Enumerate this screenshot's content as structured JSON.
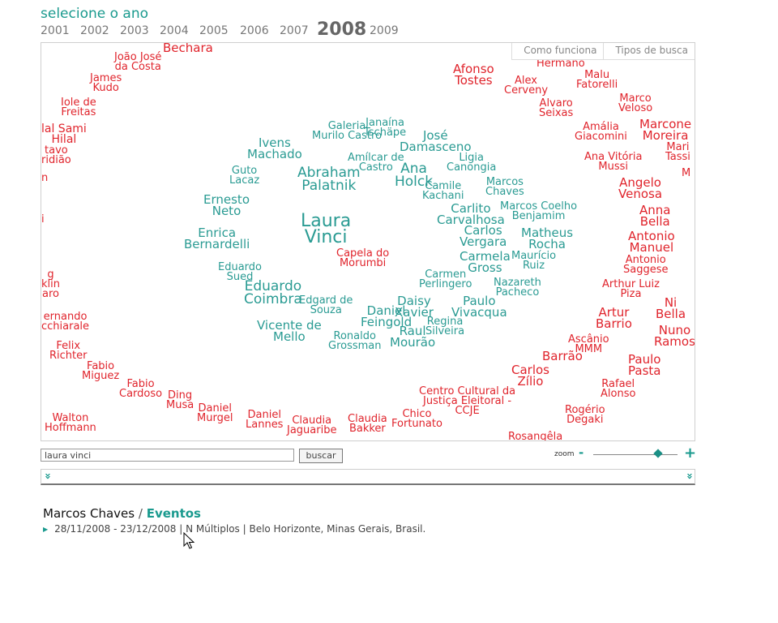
{
  "header": {
    "title": "selecione o ano",
    "years": [
      "2001",
      "2002",
      "2003",
      "2004",
      "2005",
      "2006",
      "2007",
      "2008",
      "2009"
    ],
    "selected_year": "2008"
  },
  "cloud": {
    "tabs": [
      "Como funciona",
      "Tipos de busca"
    ],
    "terms": [
      {
        "text": "Bechara",
        "color": "red"
      },
      {
        "text": "João José\nda Costa",
        "color": "red"
      },
      {
        "text": "James\nKudo",
        "color": "red"
      },
      {
        "text": "Iole de\nFreitas",
        "color": "red"
      },
      {
        "text": "lal Sami\nHilal",
        "color": "red"
      },
      {
        "text": "tavo\nridião",
        "color": "red"
      },
      {
        "text": "n",
        "color": "red"
      },
      {
        "text": "i",
        "color": "red"
      },
      {
        "text": "g\nklin\naro",
        "color": "red"
      },
      {
        "text": "ernando\ncchiarale",
        "color": "red"
      },
      {
        "text": "Felix\nRichter",
        "color": "red"
      },
      {
        "text": "Fabio\nMiguez",
        "color": "red"
      },
      {
        "text": "Fabio\nCardoso",
        "color": "red"
      },
      {
        "text": "Ding\nMusa",
        "color": "red"
      },
      {
        "text": "Walton\nHoffmann",
        "color": "red"
      },
      {
        "text": "Daniel\nMurgel",
        "color": "red"
      },
      {
        "text": "Daniel\nLannes",
        "color": "red"
      },
      {
        "text": "Claudia\nJaguaribe",
        "color": "red"
      },
      {
        "text": "Claudia\nBakker",
        "color": "red"
      },
      {
        "text": "Chico\nFortunato",
        "color": "red"
      },
      {
        "text": "Centro Cultural da\nJustiça Eleitoral -\nCCJE",
        "color": "red"
      },
      {
        "text": "Capela do\nMorumbi",
        "color": "red"
      },
      {
        "text": "Afonso\nTostes",
        "color": "red"
      },
      {
        "text": "Alex\nCerveny",
        "color": "red"
      },
      {
        "text": "Hermano",
        "color": "red"
      },
      {
        "text": "Malu\nFatorelli",
        "color": "red"
      },
      {
        "text": "Alvaro\nSeixas",
        "color": "red"
      },
      {
        "text": "Marco\nVeloso",
        "color": "red"
      },
      {
        "text": "Marcone\nMoreira",
        "color": "red"
      },
      {
        "text": "Amália\nGiacomini",
        "color": "red"
      },
      {
        "text": "Mari\nTassi",
        "color": "red"
      },
      {
        "text": "Ana Vitória\nMussi",
        "color": "red"
      },
      {
        "text": "M",
        "color": "red"
      },
      {
        "text": "Angelo\nVenosa",
        "color": "red"
      },
      {
        "text": "Anna\nBella",
        "color": "red"
      },
      {
        "text": "Antonio\nManuel",
        "color": "red"
      },
      {
        "text": "Antonio\nSaggese",
        "color": "red"
      },
      {
        "text": "Arthur Luiz\nPiza",
        "color": "red"
      },
      {
        "text": "Artur\nBarrio",
        "color": "red"
      },
      {
        "text": "Nuno\nRamos",
        "color": "red"
      },
      {
        "text": "Ni\nBella",
        "color": "red"
      },
      {
        "text": "Ascânio\nMMM",
        "color": "red"
      },
      {
        "text": "Barrão",
        "color": "red"
      },
      {
        "text": "Paulo\nPasta",
        "color": "red"
      },
      {
        "text": "Carlos\nZílio",
        "color": "red"
      },
      {
        "text": "Rafael\nAlonso",
        "color": "red"
      },
      {
        "text": "Rogério\nDegaki",
        "color": "red"
      },
      {
        "text": "Rosangêla",
        "color": "red"
      },
      {
        "text": "Galeria\nMurilo Castro",
        "color": "teal"
      },
      {
        "text": "Janaína\nTschäpe",
        "color": "teal"
      },
      {
        "text": "Ivens\nMachado",
        "color": "teal"
      },
      {
        "text": "José\nDamasceno",
        "color": "teal"
      },
      {
        "text": "Amílcar de\nCastro",
        "color": "teal"
      },
      {
        "text": "Ligia\nCanongia",
        "color": "teal"
      },
      {
        "text": "Guto\nLacaz",
        "color": "teal"
      },
      {
        "text": "Abraham\nPalatnik",
        "color": "teal"
      },
      {
        "text": "Ana\nHolck",
        "color": "teal"
      },
      {
        "text": "Marcos\nChaves",
        "color": "teal"
      },
      {
        "text": "Camile\nKachani",
        "color": "teal"
      },
      {
        "text": "Ernesto\nNeto",
        "color": "teal"
      },
      {
        "text": "Carlito\nCarvalhosa",
        "color": "teal"
      },
      {
        "text": "Marcos Coelho\nBenjamim",
        "color": "teal"
      },
      {
        "text": "Laura\nVinci",
        "color": "teal"
      },
      {
        "text": "Carlos\nVergara",
        "color": "teal"
      },
      {
        "text": "Matheus\nRocha",
        "color": "teal"
      },
      {
        "text": "Enrica\nBernardelli",
        "color": "teal"
      },
      {
        "text": "Carmela\nGross",
        "color": "teal"
      },
      {
        "text": "Maurício\nRuiz",
        "color": "teal"
      },
      {
        "text": "Eduardo\nSued",
        "color": "teal"
      },
      {
        "text": "Carmen\nPerlingero",
        "color": "teal"
      },
      {
        "text": "Nazareth\nPacheco",
        "color": "teal"
      },
      {
        "text": "Eduardo\nCoimbra",
        "color": "teal"
      },
      {
        "text": "Edgard de\nSouza",
        "color": "teal"
      },
      {
        "text": "Daisy\nXavier",
        "color": "teal"
      },
      {
        "text": "Paulo\nVivacqua",
        "color": "teal"
      },
      {
        "text": "Daniel\nFeingold",
        "color": "teal"
      },
      {
        "text": "Regina\nSilveira",
        "color": "teal"
      },
      {
        "text": "Vicente de\nMello",
        "color": "teal"
      },
      {
        "text": "Raul\nMourão",
        "color": "teal"
      },
      {
        "text": "Ronaldo\nGrossman",
        "color": "teal"
      }
    ]
  },
  "search": {
    "value": "laura vinci",
    "button_label": "buscar"
  },
  "zoom": {
    "label": "zoom",
    "minus": "-",
    "plus": "+",
    "level": 0.77
  },
  "collapse": {
    "left_icon": "double-chevron-down",
    "right_icon": "double-chevron-down",
    "glyph": "»"
  },
  "result": {
    "artist": "Marcos Chaves",
    "separator": "/",
    "category": "Eventos",
    "event": "28/11/2008 - 23/12/2008 | N Múltiplos | Belo Horizonte, Minas Gerais, Brasil."
  },
  "colors": {
    "teal": "#2a9b93",
    "red": "#e0242c",
    "accent": "#1a9a8e"
  }
}
